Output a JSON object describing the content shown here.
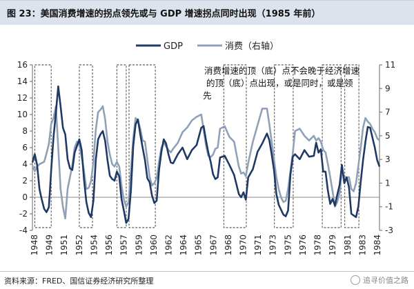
{
  "header": {
    "title": "图 23：美国消费增速的拐点领先或与 GDP 增速拐点同时出现（1985 年前）"
  },
  "chart_data": {
    "type": "line",
    "legend_position": "top-center",
    "x_ticks": [
      "1948",
      "1949",
      "1951",
      "1952",
      "1954",
      "1956",
      "1957",
      "1959",
      "1960",
      "1962",
      "1964",
      "1965",
      "1967",
      "1968",
      "1970",
      "1971",
      "1973",
      "1975",
      "1976",
      "1978",
      "1979",
      "1981",
      "1983",
      "1984"
    ],
    "y_left": {
      "ticks": [
        -4,
        -2,
        0,
        2,
        4,
        6,
        8,
        10,
        12,
        14,
        16
      ],
      "range": [
        -4,
        16
      ]
    },
    "y_right": {
      "ticks": [
        -3,
        -1,
        1,
        3,
        5,
        7,
        9,
        11
      ],
      "range": [
        -3,
        11
      ]
    },
    "annotation": "消费增速的顶（底）点不会晚于经济增速的顶（底）点出现，或是同时，或是领先",
    "highlight_periods": [
      [
        1948.25,
        1950.0
      ],
      [
        1953.0,
        1954.4
      ],
      [
        1957.0,
        1958.0
      ],
      [
        1958.3,
        1961.1
      ],
      [
        1968.4,
        1970.8
      ],
      [
        1973.8,
        1975.8
      ],
      [
        1978.9,
        1980.9
      ],
      [
        1981.3,
        1982.8
      ]
    ],
    "series": [
      {
        "name": "GDP",
        "axis": "left",
        "color": "#1f3864",
        "x": [
          1948.0,
          1948.25,
          1948.5,
          1948.75,
          1949.0,
          1949.25,
          1949.5,
          1949.75,
          1950.0,
          1950.25,
          1950.5,
          1950.75,
          1951.0,
          1951.25,
          1951.5,
          1951.75,
          1952.0,
          1952.25,
          1952.5,
          1952.75,
          1953.0,
          1953.25,
          1953.5,
          1953.75,
          1954.0,
          1954.25,
          1954.5,
          1954.75,
          1955.0,
          1955.25,
          1955.5,
          1955.75,
          1956.0,
          1956.25,
          1956.5,
          1956.75,
          1957.0,
          1957.25,
          1957.5,
          1957.75,
          1958.0,
          1958.25,
          1958.5,
          1958.75,
          1959.0,
          1959.25,
          1959.5,
          1959.75,
          1960.0,
          1960.25,
          1960.5,
          1960.75,
          1961.0,
          1961.25,
          1961.5,
          1961.75,
          1962.0,
          1962.25,
          1962.5,
          1962.75,
          1963.0,
          1963.5,
          1964.0,
          1964.5,
          1965.0,
          1965.5,
          1966.0,
          1966.25,
          1966.5,
          1966.75,
          1967.0,
          1967.25,
          1967.5,
          1967.75,
          1968.0,
          1968.5,
          1969.0,
          1969.5,
          1970.0,
          1970.25,
          1970.5,
          1970.75,
          1971.0,
          1971.5,
          1972.0,
          1972.5,
          1973.0,
          1973.25,
          1973.5,
          1973.75,
          1974.0,
          1974.25,
          1974.5,
          1974.75,
          1975.0,
          1975.25,
          1975.5,
          1975.75,
          1976.0,
          1976.5,
          1977.0,
          1977.5,
          1978.0,
          1978.25,
          1978.5,
          1978.75,
          1979.0,
          1979.25,
          1979.5,
          1979.75,
          1980.0,
          1980.25,
          1980.5,
          1980.75,
          1981.0,
          1981.25,
          1981.5,
          1981.75,
          1982.0,
          1982.25,
          1982.5,
          1982.75,
          1983.0,
          1983.25,
          1983.5,
          1983.75,
          1984.0,
          1984.25,
          1984.5,
          1984.75,
          1985.0
        ],
        "values": [
          4.2,
          5.2,
          3.9,
          1.0,
          -0.3,
          -1.4,
          -1.8,
          -1.2,
          3.3,
          7.3,
          10.2,
          13.4,
          11.0,
          8.4,
          7.6,
          4.6,
          3.5,
          3.3,
          5.4,
          6.2,
          7.0,
          5.7,
          2.1,
          -0.6,
          -1.9,
          -2.4,
          -0.4,
          4.5,
          7.0,
          7.6,
          8.0,
          6.8,
          4.5,
          2.6,
          2.2,
          2.0,
          3.1,
          2.5,
          -0.2,
          -1.6,
          -3.1,
          -2.6,
          0.8,
          6.2,
          8.8,
          9.4,
          7.6,
          6.0,
          4.5,
          2.3,
          1.8,
          0.2,
          -0.7,
          -0.4,
          3.3,
          5.5,
          7.0,
          6.5,
          5.2,
          4.2,
          4.1,
          5.2,
          6.0,
          4.6,
          5.7,
          6.3,
          8.4,
          8.6,
          6.9,
          5.4,
          4.3,
          2.8,
          2.2,
          2.4,
          4.8,
          5.0,
          3.9,
          2.7,
          0.4,
          0.0,
          0.6,
          -0.3,
          2.4,
          3.4,
          5.5,
          6.5,
          7.7,
          6.9,
          5.2,
          3.3,
          0.4,
          -0.9,
          -1.5,
          -2.1,
          -2.3,
          -1.6,
          2.7,
          4.9,
          5.2,
          4.6,
          5.7,
          4.9,
          5.0,
          6.6,
          5.4,
          5.8,
          3.1,
          3.1,
          0.8,
          -0.8,
          -0.2,
          -1.0,
          0.3,
          1.5,
          3.9,
          1.7,
          2.4,
          1.2,
          -2.0,
          -2.2,
          -2.4,
          -1.1,
          1.9,
          4.5,
          6.7,
          8.5,
          8.4,
          7.2,
          6.0,
          4.5,
          3.7
        ]
      },
      {
        "name": "消费（右轴）",
        "axis": "right",
        "color": "#8fa1b8",
        "x": [
          1948.0,
          1948.25,
          1948.5,
          1948.75,
          1949.0,
          1949.25,
          1949.5,
          1949.75,
          1950.0,
          1950.25,
          1950.5,
          1950.75,
          1951.0,
          1951.25,
          1951.5,
          1951.75,
          1952.0,
          1952.25,
          1952.5,
          1952.75,
          1953.0,
          1953.25,
          1953.5,
          1953.75,
          1954.0,
          1954.25,
          1954.5,
          1954.75,
          1955.0,
          1955.25,
          1955.5,
          1955.75,
          1956.0,
          1956.25,
          1956.5,
          1956.75,
          1957.0,
          1957.25,
          1957.5,
          1957.75,
          1958.0,
          1958.25,
          1958.5,
          1958.75,
          1959.0,
          1959.25,
          1959.5,
          1959.75,
          1960.0,
          1960.25,
          1960.5,
          1960.75,
          1961.0,
          1961.25,
          1961.5,
          1961.75,
          1962.0,
          1962.25,
          1962.5,
          1962.75,
          1963.0,
          1963.5,
          1964.0,
          1964.5,
          1965.0,
          1965.5,
          1966.0,
          1966.25,
          1966.5,
          1966.75,
          1967.0,
          1967.25,
          1967.5,
          1967.75,
          1968.0,
          1968.5,
          1969.0,
          1969.5,
          1970.0,
          1970.25,
          1970.5,
          1970.75,
          1971.0,
          1971.5,
          1972.0,
          1972.5,
          1973.0,
          1973.25,
          1973.5,
          1973.75,
          1974.0,
          1974.25,
          1974.5,
          1974.75,
          1975.0,
          1975.25,
          1975.5,
          1975.75,
          1976.0,
          1976.5,
          1977.0,
          1977.5,
          1978.0,
          1978.25,
          1978.5,
          1978.75,
          1979.0,
          1979.25,
          1979.5,
          1979.75,
          1980.0,
          1980.25,
          1980.5,
          1980.75,
          1981.0,
          1981.25,
          1981.5,
          1981.75,
          1982.0,
          1982.25,
          1982.5,
          1982.75,
          1983.0,
          1983.25,
          1983.5,
          1983.75,
          1984.0,
          1984.25,
          1984.5,
          1984.75,
          1985.0
        ],
        "values": [
          2.5,
          2.0,
          2.4,
          2.6,
          2.7,
          2.8,
          3.5,
          4.3,
          6.0,
          6.5,
          7.5,
          4.0,
          0.5,
          -1.0,
          -2.0,
          0.5,
          1.5,
          2.5,
          4.0,
          4.5,
          4.2,
          3.2,
          2.0,
          0.5,
          0.6,
          1.2,
          2.8,
          5.5,
          7.0,
          7.2,
          7.5,
          6.4,
          4.5,
          3.4,
          2.6,
          2.4,
          2.8,
          2.4,
          0.8,
          -0.4,
          -1.0,
          -0.6,
          2.0,
          4.8,
          6.5,
          6.3,
          5.6,
          4.6,
          4.5,
          3.0,
          1.5,
          0.8,
          1.0,
          1.4,
          2.8,
          4.0,
          4.4,
          4.1,
          3.8,
          3.6,
          3.9,
          4.4,
          5.3,
          5.7,
          6.3,
          6.6,
          6.8,
          5.5,
          4.2,
          3.3,
          3.2,
          3.4,
          3.9,
          4.0,
          5.6,
          5.8,
          4.9,
          4.5,
          2.4,
          1.8,
          1.9,
          1.6,
          2.7,
          4.5,
          5.9,
          7.3,
          7.3,
          6.0,
          4.5,
          3.0,
          1.5,
          0.5,
          -0.2,
          -0.6,
          -0.5,
          0.5,
          2.0,
          3.5,
          5.4,
          5.6,
          5.0,
          4.6,
          5.0,
          4.6,
          4.8,
          4.5,
          3.8,
          3.6,
          2.6,
          1.5,
          0.3,
          -1.0,
          -0.6,
          0.2,
          2.0,
          1.5,
          1.5,
          1.5,
          0.5,
          0.3,
          1.0,
          2.5,
          4.0,
          5.7,
          6.5,
          6.2,
          6.0,
          5.6,
          5.3,
          4.8,
          4.6
        ]
      }
    ]
  },
  "footer": {
    "source": "资料来源：FRED、国信证券经济研究所整理",
    "watermark": "追寻价值之路"
  }
}
